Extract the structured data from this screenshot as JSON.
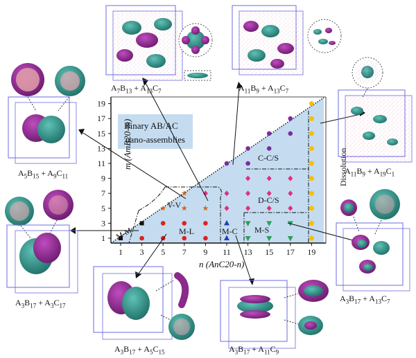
{
  "diagram": {
    "title_line1": "Binary AB/AC",
    "title_line2": "nano-assemblies",
    "x_axis_label": "n (AnC20-n)",
    "y_axis_label": "m (AmB20-m)",
    "x_ticks": [
      "1",
      "3",
      "5",
      "7",
      "9",
      "11",
      "13",
      "15",
      "17",
      "19"
    ],
    "y_ticks": [
      "1",
      "3",
      "5",
      "7",
      "9",
      "11",
      "13",
      "15",
      "17",
      "19"
    ],
    "regions": {
      "cc_s": "C-C/S",
      "d_c_s": "D-C/S",
      "v_v": "V-V",
      "m_m": "M-M",
      "m_l": "M-L",
      "m_c": "M-C",
      "m_s": "M-S",
      "dissolution": "Dissolution"
    },
    "colors": {
      "region_fill": "#c5dcf0",
      "m_m": "#111111",
      "v_v": "#d2691e",
      "m_l": "#e02020",
      "m_c": "#1e3fbf",
      "m_s": "#2e9e5b",
      "d_c_s": "#e0307a",
      "c_c_s": "#7a2da0",
      "dissolution": "#f5c000"
    }
  },
  "chart_data": {
    "type": "scatter",
    "xlabel": "n (AnC20-n)",
    "ylabel": "m (AmB20-m)",
    "xlim": [
      1,
      19
    ],
    "ylim": [
      1,
      19
    ],
    "series": [
      {
        "name": "M-M",
        "points": [
          [
            1,
            1
          ],
          [
            3,
            3
          ]
        ]
      },
      {
        "name": "V-V",
        "points": [
          [
            5,
            5
          ],
          [
            7,
            5
          ],
          [
            9,
            5
          ],
          [
            7,
            7
          ]
        ]
      },
      {
        "name": "M-L",
        "points": [
          [
            3,
            1
          ],
          [
            5,
            1
          ],
          [
            7,
            1
          ],
          [
            9,
            1
          ],
          [
            5,
            3
          ],
          [
            7,
            3
          ],
          [
            9,
            3
          ]
        ]
      },
      {
        "name": "M-C",
        "points": [
          [
            11,
            1
          ],
          [
            11,
            3
          ]
        ]
      },
      {
        "name": "M-S",
        "points": [
          [
            13,
            1
          ],
          [
            15,
            1
          ],
          [
            17,
            1
          ],
          [
            13,
            3
          ],
          [
            15,
            3
          ],
          [
            17,
            3
          ]
        ]
      },
      {
        "name": "D-C/S",
        "points": [
          [
            9,
            7
          ],
          [
            11,
            5
          ],
          [
            11,
            7
          ],
          [
            13,
            5
          ],
          [
            15,
            5
          ],
          [
            17,
            5
          ],
          [
            13,
            7
          ],
          [
            15,
            7
          ],
          [
            17,
            7
          ],
          [
            13,
            9
          ],
          [
            15,
            9
          ],
          [
            17,
            9
          ]
        ]
      },
      {
        "name": "C-C/S",
        "points": [
          [
            11,
            11
          ],
          [
            13,
            11
          ],
          [
            13,
            13
          ],
          [
            15,
            13
          ],
          [
            15,
            15
          ],
          [
            17,
            15
          ],
          [
            17,
            17
          ]
        ]
      },
      {
        "name": "Dissolution",
        "points": [
          [
            19,
            1
          ],
          [
            19,
            3
          ],
          [
            19,
            5
          ],
          [
            19,
            7
          ],
          [
            19,
            9
          ],
          [
            19,
            11
          ],
          [
            19,
            13
          ],
          [
            19,
            15
          ],
          [
            19,
            17
          ],
          [
            19,
            19
          ]
        ]
      }
    ]
  },
  "panels": [
    {
      "id": "top-left",
      "caption": "A7B13 + A13C7"
    },
    {
      "id": "top-mid",
      "caption": "A11B9 + A13C7"
    },
    {
      "id": "left-upper",
      "caption": "A5B15 + A9C11"
    },
    {
      "id": "right-upper",
      "caption": "A11B9 + A19C1"
    },
    {
      "id": "left-lower",
      "caption": "A3B17 + A3C17"
    },
    {
      "id": "right-lower",
      "caption": "A3B17 + A13C7"
    },
    {
      "id": "bottom-left",
      "caption": "A3B17 + A5C15"
    },
    {
      "id": "bottom-mid",
      "caption": "A3B17 + A11C9"
    }
  ]
}
